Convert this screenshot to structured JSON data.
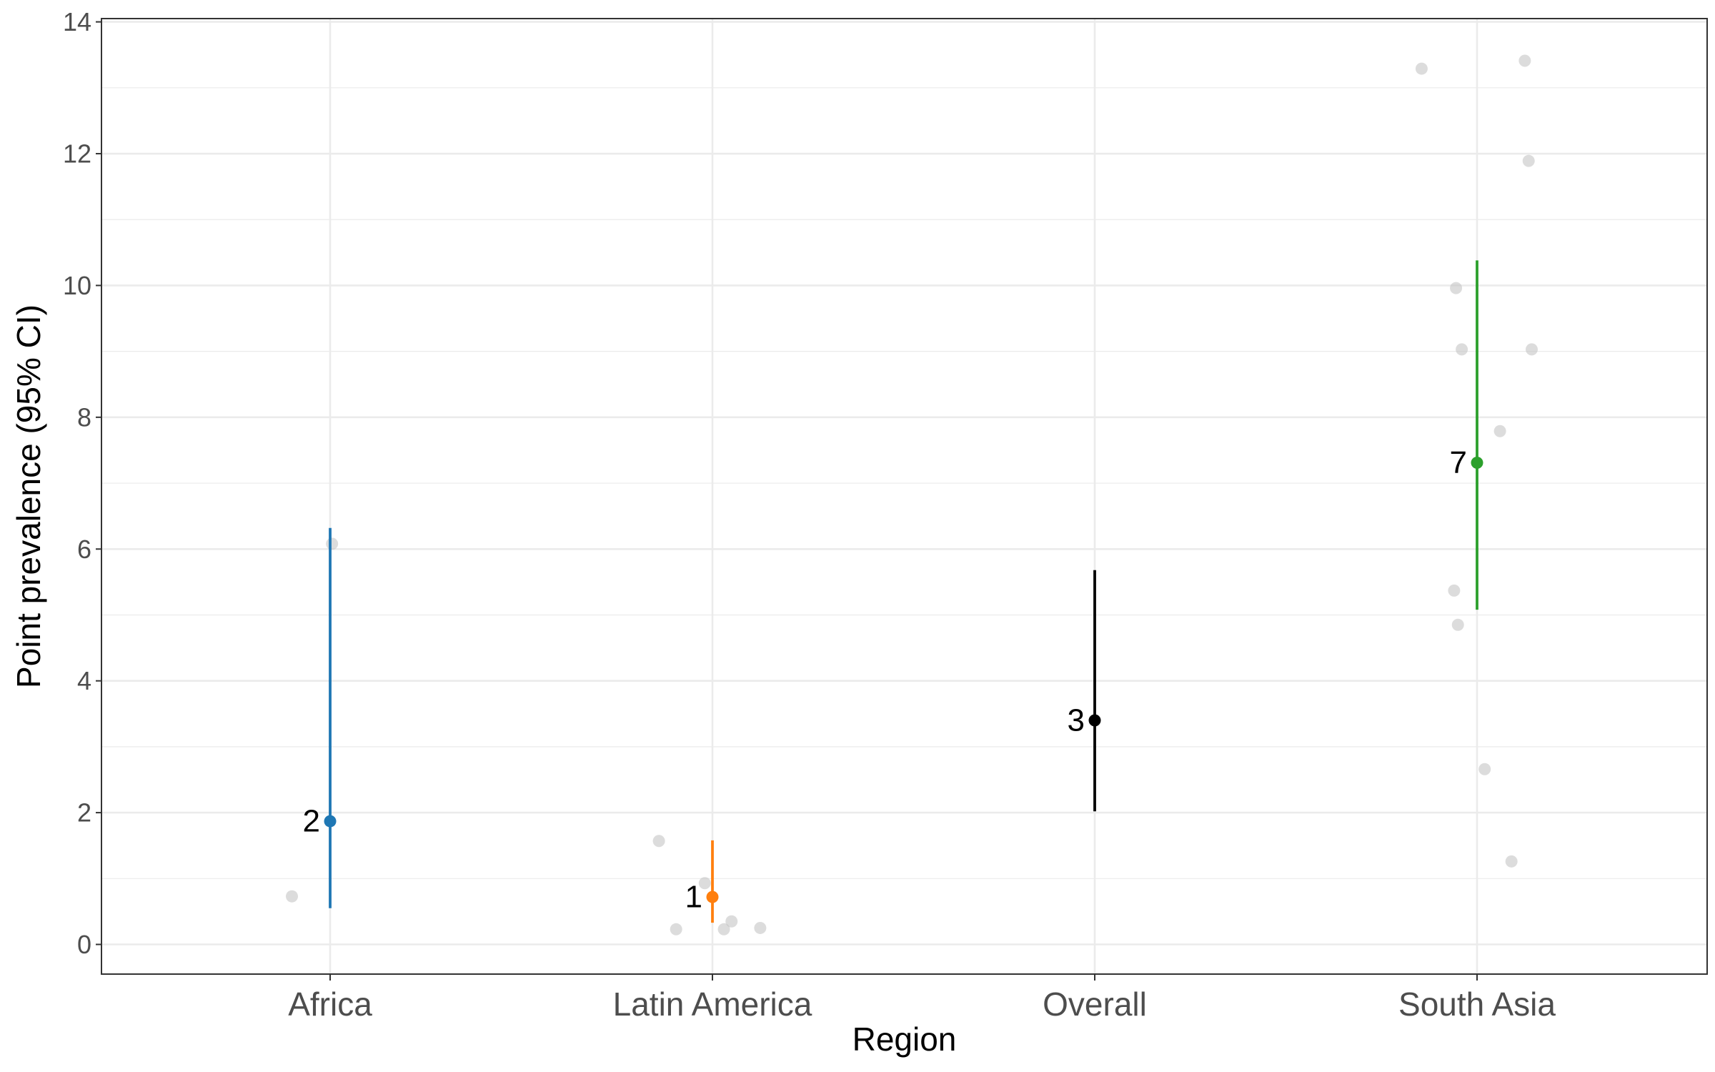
{
  "chart_data": {
    "type": "scatter",
    "title": "",
    "xlabel": "Region",
    "ylabel": "Point prevalence (95% CI)",
    "categories": [
      "Africa",
      "Latin America",
      "Overall",
      "South Asia"
    ],
    "ylim": [
      -0.45,
      14.05
    ],
    "yticks": [
      0,
      2,
      4,
      6,
      8,
      10,
      12,
      14
    ],
    "grid": true,
    "legend": "none",
    "estimates": [
      {
        "category": "Africa",
        "label": "2",
        "estimate": 1.87,
        "lower": 0.55,
        "upper": 6.32,
        "color": "#1f77b4"
      },
      {
        "category": "Latin America",
        "label": "1",
        "estimate": 0.72,
        "lower": 0.33,
        "upper": 1.58,
        "color": "#ff7f0e"
      },
      {
        "category": "Overall",
        "label": "3",
        "estimate": 3.4,
        "lower": 2.02,
        "upper": 5.68,
        "color": "#000000"
      },
      {
        "category": "South Asia",
        "label": "7",
        "estimate": 7.31,
        "lower": 5.08,
        "upper": 10.38,
        "color": "#2ca02c"
      }
    ],
    "studies": [
      {
        "category": "Africa",
        "jitter": -0.1,
        "value": 0.73
      },
      {
        "category": "Africa",
        "jitter": 0.005,
        "value": 6.08
      },
      {
        "category": "Latin America",
        "jitter": -0.14,
        "value": 1.57
      },
      {
        "category": "Latin America",
        "jitter": -0.095,
        "value": 0.23
      },
      {
        "category": "Latin America",
        "jitter": -0.02,
        "value": 0.93
      },
      {
        "category": "Latin America",
        "jitter": 0.03,
        "value": 0.23
      },
      {
        "category": "Latin America",
        "jitter": 0.05,
        "value": 0.35
      },
      {
        "category": "Latin America",
        "jitter": 0.125,
        "value": 0.25
      },
      {
        "category": "South Asia",
        "jitter": -0.145,
        "value": 13.29
      },
      {
        "category": "South Asia",
        "jitter": -0.055,
        "value": 9.96
      },
      {
        "category": "South Asia",
        "jitter": -0.04,
        "value": 9.03
      },
      {
        "category": "South Asia",
        "jitter": -0.06,
        "value": 5.37
      },
      {
        "category": "South Asia",
        "jitter": -0.05,
        "value": 4.85
      },
      {
        "category": "South Asia",
        "jitter": 0.02,
        "value": 2.66
      },
      {
        "category": "South Asia",
        "jitter": 0.06,
        "value": 7.79
      },
      {
        "category": "South Asia",
        "jitter": 0.09,
        "value": 1.26
      },
      {
        "category": "South Asia",
        "jitter": 0.125,
        "value": 13.41
      },
      {
        "category": "South Asia",
        "jitter": 0.135,
        "value": 11.89
      },
      {
        "category": "South Asia",
        "jitter": 0.143,
        "value": 9.03
      }
    ],
    "colors": {
      "study_points": "#bfbfbf",
      "grid": "#ebebeb",
      "panel_border": "#333333",
      "tick_label": "#4d4d4d"
    }
  }
}
